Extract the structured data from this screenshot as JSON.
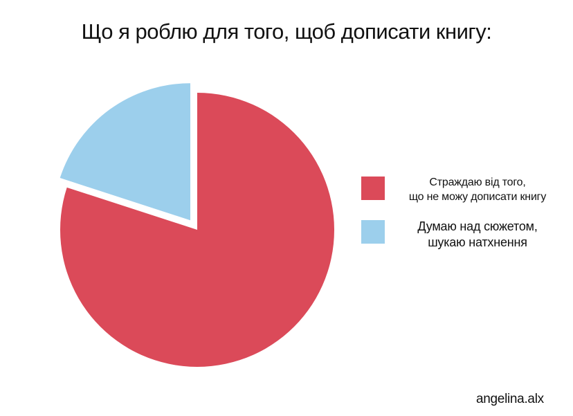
{
  "chart_data": {
    "type": "pie",
    "title": "Що я роблю для того, щоб дописати книгу:",
    "slices": [
      {
        "label_lines": [
          "Страждаю від того,",
          "що не можу дописати книгу"
        ],
        "value": 80,
        "color": "#db4a59",
        "exploded": false
      },
      {
        "label_lines": [
          "Думаю над сюжетом,",
          "шукаю натхнення"
        ],
        "value": 20,
        "color": "#9ccfec",
        "exploded": true
      }
    ],
    "start_angle_deg": 0,
    "direction": "clockwise",
    "legend_position": "right"
  },
  "signature": "angelina.alx"
}
